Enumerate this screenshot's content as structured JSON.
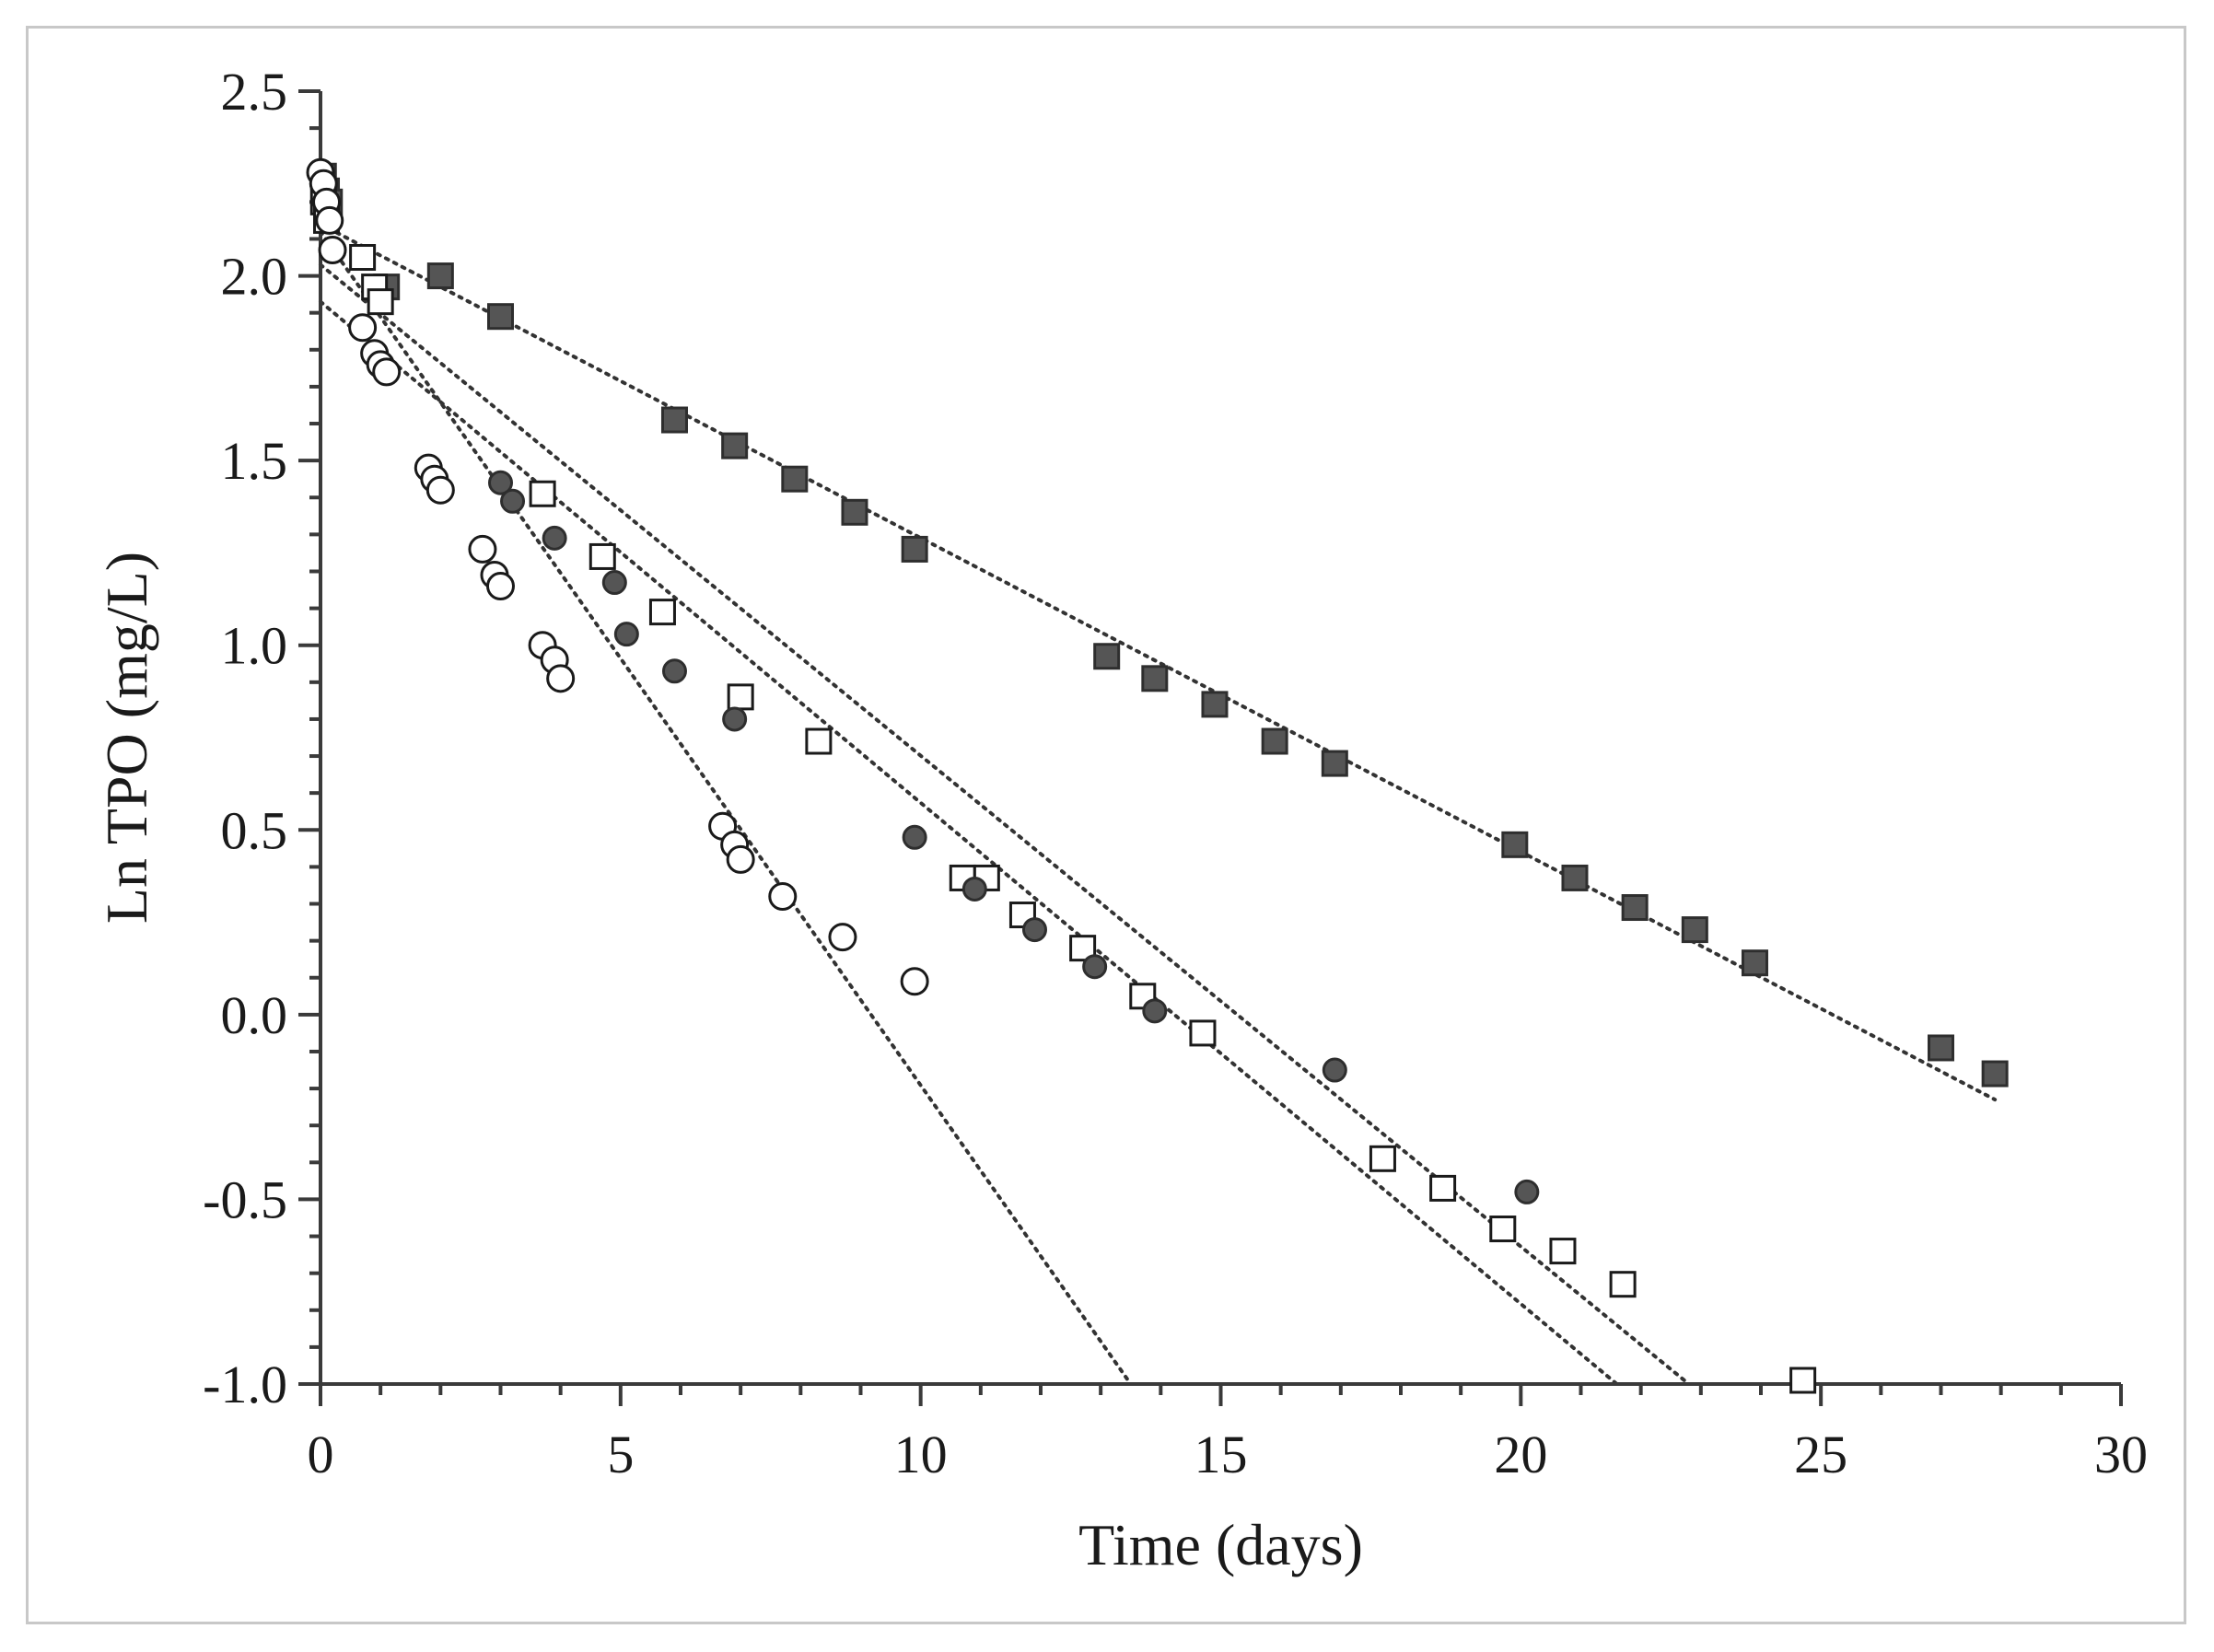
{
  "chart_data": {
    "type": "scatter",
    "title": "",
    "xlabel": "Time (days)",
    "ylabel": "Ln  TPO (mg/L)",
    "xlim": [
      0,
      30
    ],
    "ylim": [
      -1.0,
      2.5
    ],
    "x_ticks": [
      0,
      5,
      10,
      15,
      20,
      25,
      30
    ],
    "y_ticks": [
      2.5,
      2.0,
      1.5,
      1.0,
      0.5,
      0.0,
      -0.5,
      -1.0
    ],
    "x_tick_labels": [
      "0",
      "5",
      "10",
      "15",
      "20",
      "25",
      "30"
    ],
    "y_tick_labels": [
      "2.5",
      "2.0",
      "1.5",
      "1.0",
      "0.5",
      "0.0",
      "-0.5",
      "-1.0"
    ],
    "grid": false,
    "series": [
      {
        "name": "filled squares",
        "marker": "square",
        "filled": true,
        "color": "#555555",
        "x": [
          0.05,
          0.1,
          0.15,
          1.1,
          2.0,
          3.0,
          5.9,
          6.9,
          7.9,
          8.9,
          9.9,
          13.1,
          13.9,
          14.9,
          15.9,
          16.9,
          19.9,
          20.9,
          21.9,
          22.9,
          23.9,
          27.0,
          27.9
        ],
        "y": [
          2.27,
          2.23,
          2.2,
          1.97,
          2.0,
          1.89,
          1.61,
          1.54,
          1.45,
          1.36,
          1.26,
          0.97,
          0.91,
          0.84,
          0.74,
          0.68,
          0.46,
          0.37,
          0.29,
          0.23,
          0.14,
          -0.09,
          -0.16
        ]
      },
      {
        "name": "open squares",
        "marker": "square",
        "filled": false,
        "color": "#1a1a1a",
        "x": [
          0.05,
          0.1,
          0.7,
          0.9,
          1.0,
          3.7,
          4.7,
          5.7,
          7.0,
          8.3,
          10.7,
          11.1,
          11.7,
          12.7,
          13.7,
          14.7,
          17.7,
          18.7,
          19.7,
          20.7,
          21.7,
          24.7
        ],
        "y": [
          2.2,
          2.15,
          2.05,
          1.97,
          1.93,
          1.41,
          1.24,
          1.09,
          0.86,
          0.74,
          0.37,
          0.37,
          0.27,
          0.18,
          0.05,
          -0.05,
          -0.39,
          -0.47,
          -0.58,
          -0.64,
          -0.73,
          -0.99
        ]
      },
      {
        "name": "filled circles",
        "marker": "circle",
        "filled": true,
        "color": "#555555",
        "x": [
          3.0,
          3.2,
          3.9,
          4.9,
          5.1,
          5.9,
          6.9,
          9.9,
          10.9,
          11.9,
          12.9,
          13.9,
          16.9,
          20.1
        ],
        "y": [
          1.44,
          1.39,
          1.29,
          1.17,
          1.03,
          0.93,
          0.8,
          0.48,
          0.34,
          0.23,
          0.13,
          0.01,
          -0.15,
          -0.48
        ]
      },
      {
        "name": "open circles",
        "marker": "circle",
        "filled": false,
        "color": "#1a1a1a",
        "x": [
          0.0,
          0.05,
          0.1,
          0.15,
          0.2,
          0.7,
          0.9,
          1.0,
          1.1,
          1.8,
          1.9,
          2.0,
          2.7,
          2.9,
          3.0,
          3.7,
          3.9,
          4.0,
          6.7,
          6.9,
          7.0,
          7.7,
          8.7,
          9.9
        ],
        "y": [
          2.28,
          2.25,
          2.2,
          2.15,
          2.07,
          1.86,
          1.79,
          1.76,
          1.74,
          1.48,
          1.45,
          1.42,
          1.26,
          1.19,
          1.16,
          1.0,
          0.96,
          0.91,
          0.51,
          0.46,
          0.42,
          0.32,
          0.21,
          0.09
        ]
      }
    ],
    "fit_lines": [
      {
        "name": "fit filled squares",
        "x": [
          0,
          27.9
        ],
        "y": [
          2.14,
          -0.23
        ]
      },
      {
        "name": "fit open squares",
        "x": [
          0,
          22.8
        ],
        "y": [
          2.03,
          -1.0
        ]
      },
      {
        "name": "fit filled circles",
        "x": [
          0,
          21.6
        ],
        "y": [
          1.93,
          -1.0
        ]
      },
      {
        "name": "fit open circles",
        "x": [
          0,
          13.5
        ],
        "y": [
          2.12,
          -1.0
        ]
      }
    ]
  }
}
